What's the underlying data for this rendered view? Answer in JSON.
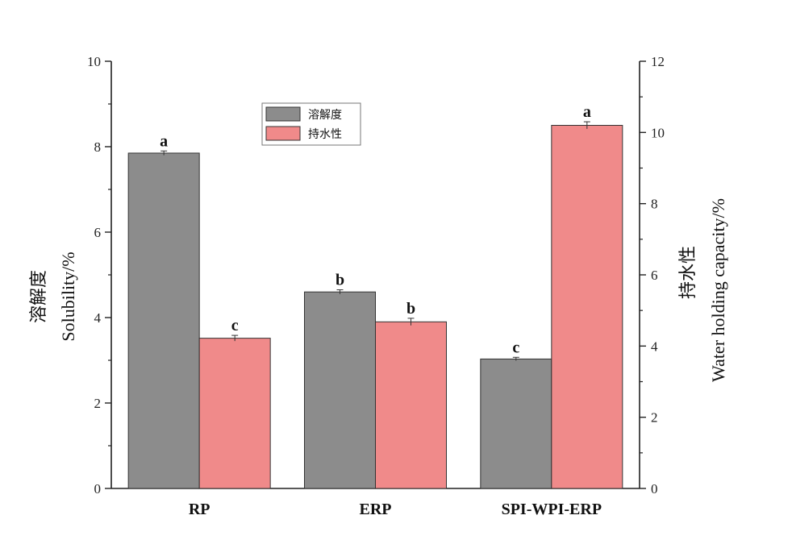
{
  "chart_data": {
    "type": "bar",
    "categories": [
      "RP",
      "ERP",
      "SPI-WPI-ERP"
    ],
    "series": [
      {
        "name": "溶解度",
        "axis": "left",
        "color": "#8c8c8c",
        "values": [
          7.85,
          4.6,
          3.03
        ],
        "error": [
          0.05,
          0.05,
          0.04
        ],
        "significance": [
          "a",
          "b",
          "c"
        ]
      },
      {
        "name": "持水性",
        "axis": "right",
        "color": "#f08a8a",
        "values": [
          4.22,
          4.68,
          10.2
        ],
        "error": [
          0.08,
          0.1,
          0.1
        ],
        "significance": [
          "c",
          "b",
          "a"
        ]
      }
    ],
    "ylabel_left": [
      "溶解度",
      "Solubility/%"
    ],
    "ylabel_right": [
      "持水性",
      "Water holding capacity/%"
    ],
    "ylim_left": [
      0,
      10
    ],
    "ylim_right": [
      0,
      12
    ],
    "yticks_left": [
      0,
      2,
      4,
      6,
      8,
      10
    ],
    "yticks_right": [
      0,
      2,
      4,
      6,
      8,
      10,
      12
    ],
    "legend_position": "top-center",
    "grid": false
  }
}
